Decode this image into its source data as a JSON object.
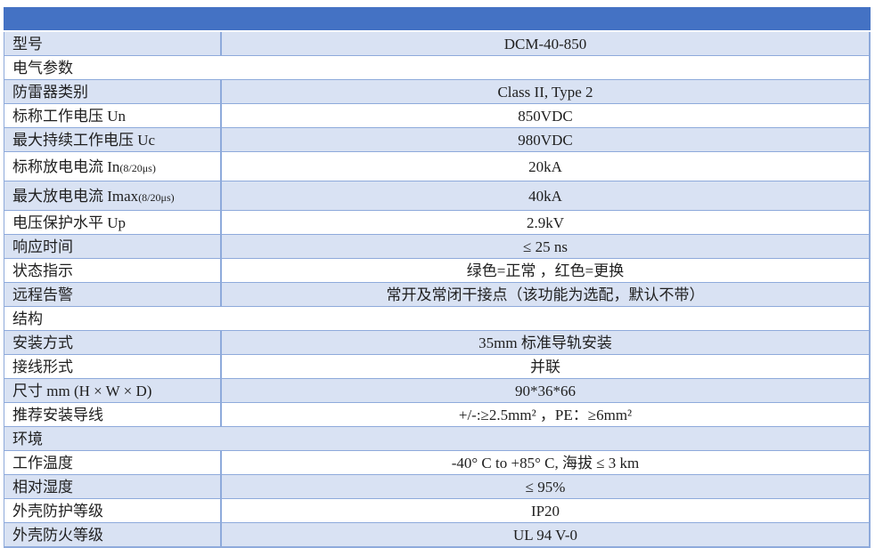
{
  "header_bar": {
    "text": "",
    "color": "#4472C4"
  },
  "colors": {
    "header_blue": "#4472C4",
    "row_shaded": "#D9E2F3",
    "row_plain": "#FFFFFF",
    "grid_border": "#8EAADB",
    "text": "#1F1F1F"
  },
  "table": {
    "product_model": "DCM-40-850",
    "rows": [
      {
        "type": "data",
        "label": "型号",
        "value": "DCM-40-850",
        "shaded": true
      },
      {
        "type": "section",
        "label": "电气参数",
        "shaded": false
      },
      {
        "type": "data",
        "label": "防雷器类别",
        "value": "Class II, Type 2",
        "shaded": true
      },
      {
        "type": "data",
        "label": "标称工作电压 Un",
        "value": "850VDC",
        "shaded": false
      },
      {
        "type": "data",
        "label": "最大持续工作电压 Uc",
        "value": "980VDC",
        "shaded": true
      },
      {
        "type": "data",
        "label": "标称放电电流 In",
        "label_suffix": "(8/20μs)",
        "value": "20kA",
        "shaded": false,
        "tall": true
      },
      {
        "type": "data",
        "label": "最大放电电流 Imax",
        "label_suffix": "(8/20μs)",
        "value": "40kA",
        "shaded": true,
        "tall": true
      },
      {
        "type": "data",
        "label": "电压保护水平 Up",
        "value": "2.9kV",
        "shaded": false
      },
      {
        "type": "data",
        "label": "响应时间",
        "value": "≤ 25 ns",
        "shaded": true
      },
      {
        "type": "data",
        "label": "状态指示",
        "value": "绿色=正常 ，红色=更换",
        "shaded": false
      },
      {
        "type": "data",
        "label": "远程告警",
        "value": "常开及常闭干接点（该功能为选配，默认不带）",
        "shaded": true
      },
      {
        "type": "section",
        "label": "结构",
        "shaded": false
      },
      {
        "type": "data",
        "label": "安装方式",
        "value": "35mm 标准导轨安装",
        "shaded": true
      },
      {
        "type": "data",
        "label": "接线形式",
        "value": "并联",
        "shaded": false
      },
      {
        "type": "data",
        "label": "尺寸 mm (H × W × D)",
        "value": "90*36*66",
        "shaded": true
      },
      {
        "type": "data",
        "label": "推荐安装导线",
        "value": "+/-:≥2.5mm² ，PE：≥6mm²",
        "shaded": false
      },
      {
        "type": "section",
        "label": "环境",
        "shaded": true
      },
      {
        "type": "data",
        "label": "工作温度",
        "value": "-40° C to +85° C, 海拔 ≤ 3 km",
        "shaded": false
      },
      {
        "type": "data",
        "label": "相对湿度",
        "value": "≤ 95%",
        "shaded": true
      },
      {
        "type": "data",
        "label": "外壳防护等级",
        "value": "IP20",
        "shaded": false
      },
      {
        "type": "data",
        "label": "外壳防火等级",
        "value": "UL 94 V-0",
        "shaded": true
      }
    ]
  }
}
